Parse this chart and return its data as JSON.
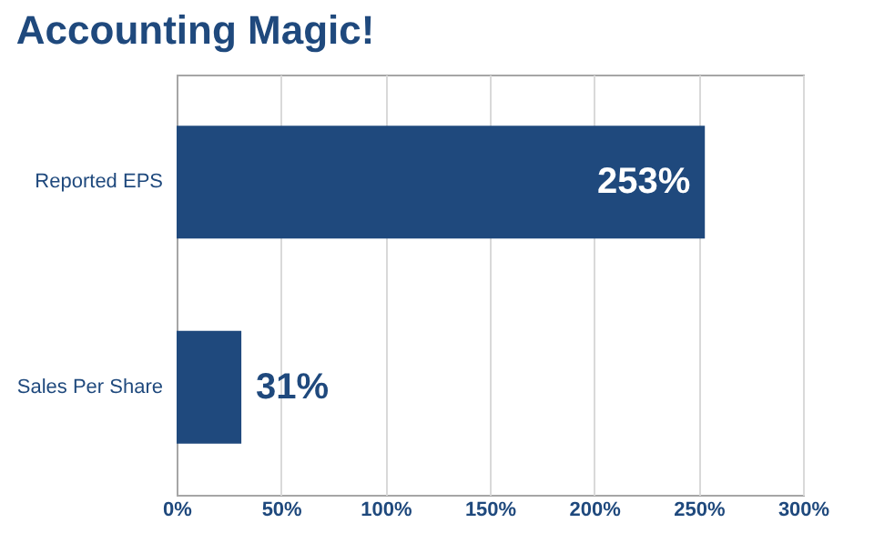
{
  "chart_data": {
    "type": "bar",
    "orientation": "horizontal",
    "title": "Accounting Magic!",
    "categories": [
      "Reported EPS",
      "Sales Per Share"
    ],
    "values": [
      253,
      31
    ],
    "value_labels": [
      "253%",
      "31%"
    ],
    "color": "#1f497d",
    "xlim": [
      0,
      300
    ],
    "xticks": [
      {
        "value": 0,
        "label": "0%"
      },
      {
        "value": 50,
        "label": "50%"
      },
      {
        "value": 100,
        "label": "100%"
      },
      {
        "value": 150,
        "label": "150%"
      },
      {
        "value": 200,
        "label": "200%"
      },
      {
        "value": 250,
        "label": "250%"
      },
      {
        "value": 300,
        "label": "300%"
      }
    ],
    "grid": "x"
  }
}
